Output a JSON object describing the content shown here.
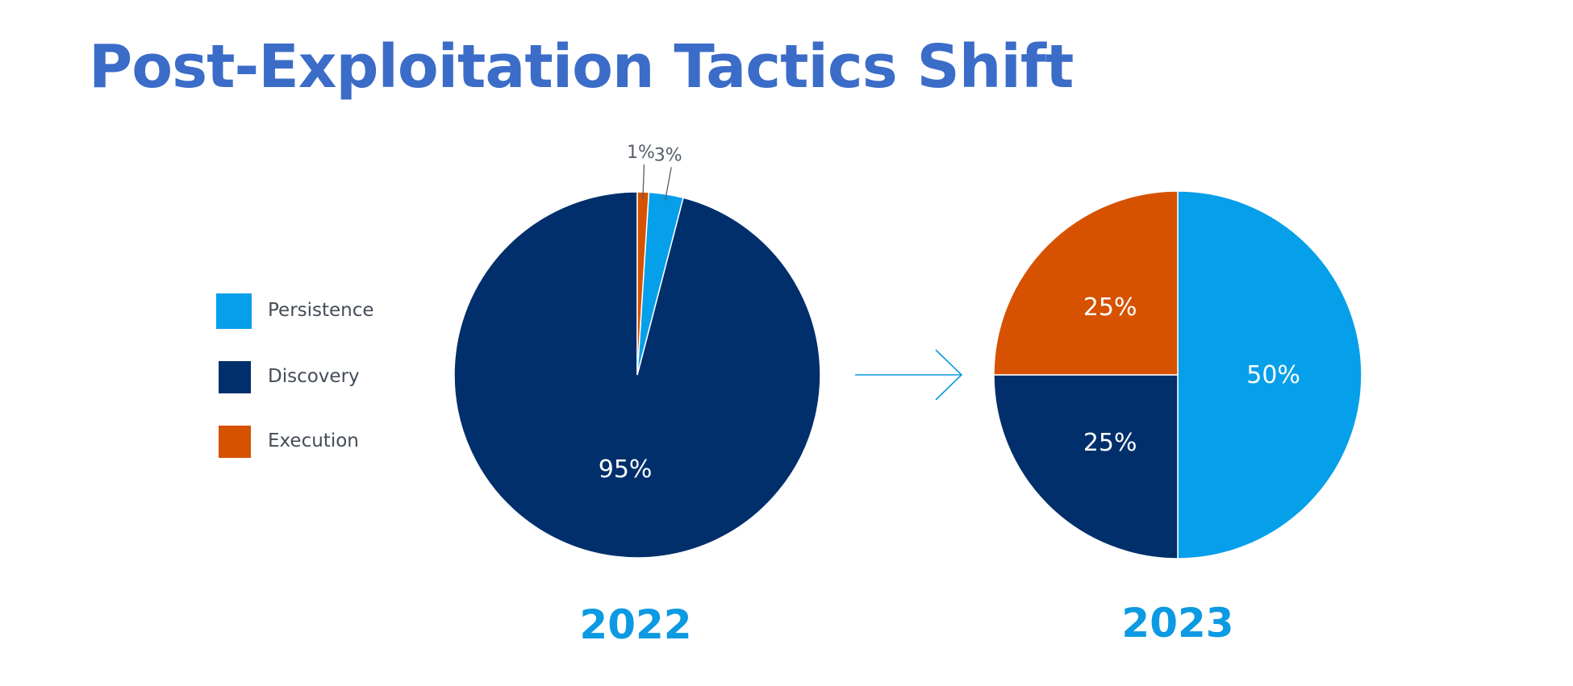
{
  "title": "Post-Exploitation Tactics Shift",
  "colors": {
    "title": "#3b6cc8",
    "year": "#0c9ae2",
    "Persistence": "#059fea",
    "Discovery": "#002f6c",
    "Execution": "#d65200",
    "arrow": "#0c9ae2"
  },
  "legend": [
    {
      "label": "Persistence"
    },
    {
      "label": "Discovery"
    },
    {
      "label": "Execution"
    }
  ],
  "chart_data": [
    {
      "type": "pie",
      "title": "2022",
      "slices": [
        {
          "label": "Discovery",
          "value": 95,
          "text": "95%"
        },
        {
          "label": "Persistence",
          "value": 3,
          "text": "3%"
        },
        {
          "label": "Execution",
          "value": 1,
          "text": "1%"
        }
      ]
    },
    {
      "type": "pie",
      "title": "2023",
      "slices": [
        {
          "label": "Persistence",
          "value": 50,
          "text": "50%"
        },
        {
          "label": "Discovery",
          "value": 25,
          "text": "25%"
        },
        {
          "label": "Execution",
          "value": 25,
          "text": "25%"
        }
      ]
    }
  ]
}
